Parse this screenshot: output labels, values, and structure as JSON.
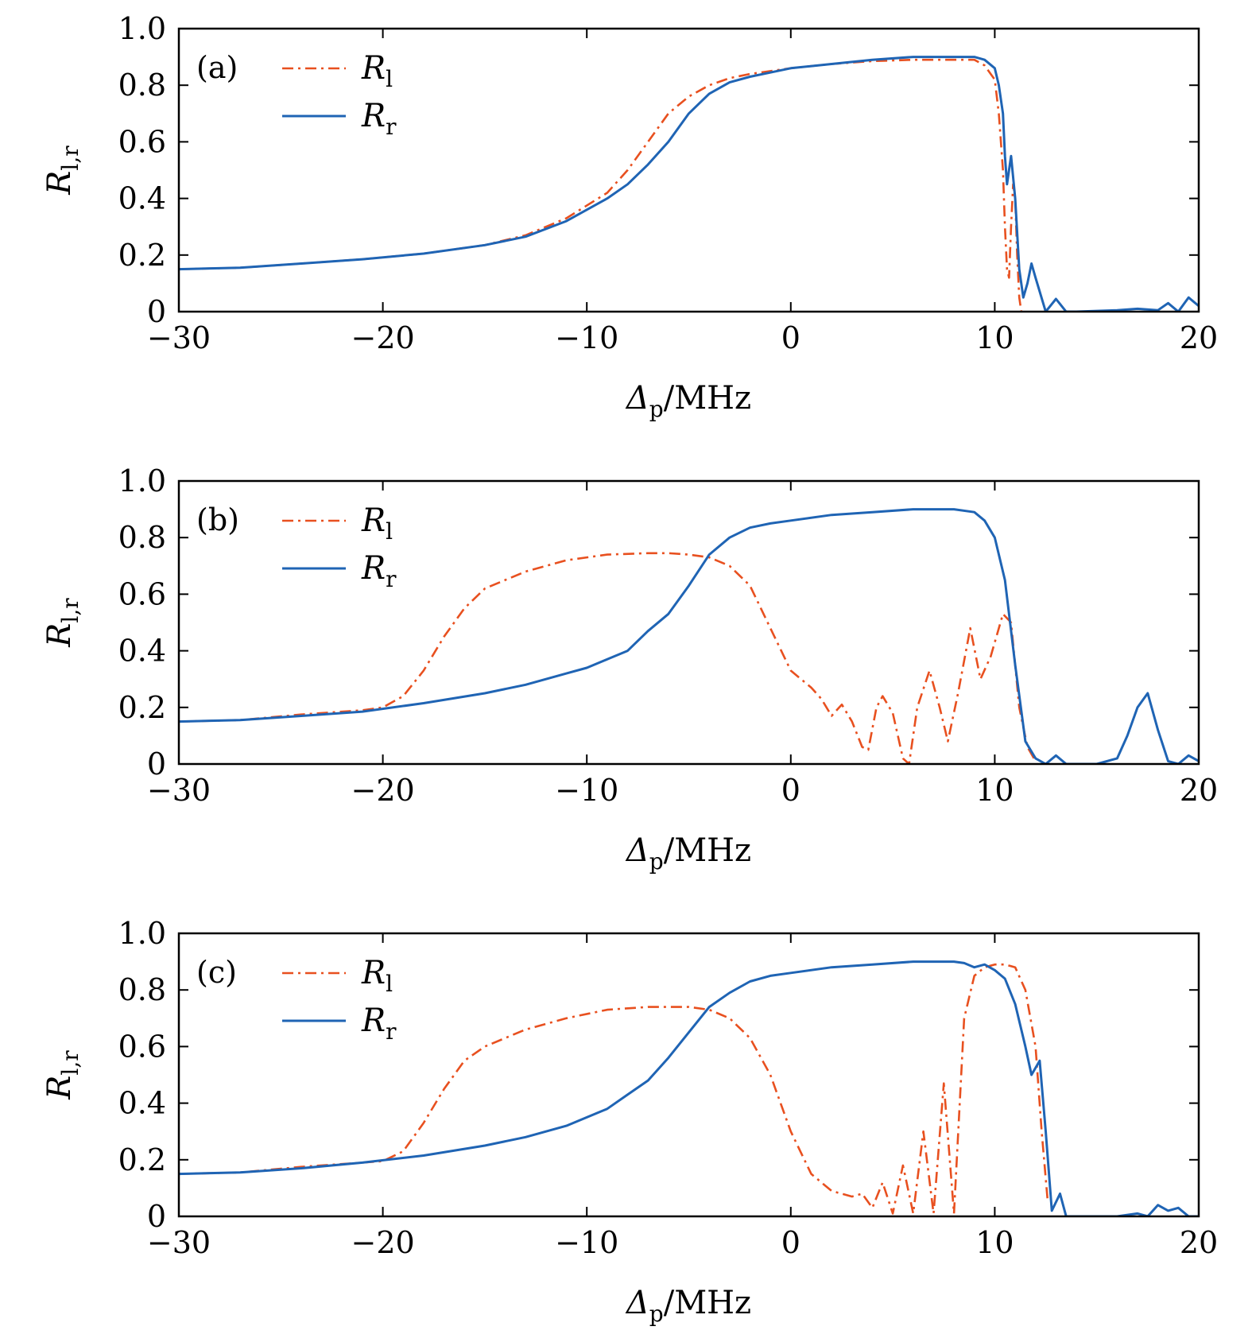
{
  "figure": {
    "shared_axes": {
      "x_label_main": "Δ",
      "x_label_sub": "p",
      "x_label_unit": "/MHz",
      "y_label_main": "R",
      "y_label_sub": "l,r",
      "x_ticks": [
        -30,
        -20,
        -10,
        0,
        10,
        20
      ],
      "x_tick_labels": [
        "−30",
        "−20",
        "−10",
        "0",
        "10",
        "20"
      ],
      "y_ticks": [
        0,
        0.2,
        0.4,
        0.6,
        0.8,
        1.0
      ],
      "y_tick_labels": [
        "0",
        "0.2",
        "0.4",
        "0.6",
        "0.8",
        "1.0"
      ],
      "xlim": [
        -30,
        20
      ],
      "ylim": [
        0,
        1.0
      ]
    },
    "legend": {
      "items": [
        {
          "main": "R",
          "sub": "l",
          "color": "#e8501f",
          "style": "dash-dot"
        },
        {
          "main": "R",
          "sub": "r",
          "color": "#1f64b4",
          "style": "solid"
        }
      ],
      "placement": "top-left"
    }
  },
  "chart_data": [
    {
      "type": "line",
      "panel": "(a)",
      "xlabel": "Δp/MHz",
      "ylabel": "Rl,r",
      "xlim": [
        -30,
        20
      ],
      "ylim": [
        0,
        1.0
      ],
      "grid": false,
      "series": [
        {
          "name": "Rl",
          "color": "#e8501f",
          "x": [
            -30,
            -27,
            -24,
            -21,
            -18,
            -15,
            -13,
            -11,
            -9,
            -8,
            -7,
            -6,
            -5,
            -4,
            -3,
            -2,
            -1,
            0,
            2,
            4,
            6,
            8,
            9,
            9.5,
            10,
            10.2,
            10.4,
            10.5,
            10.6,
            10.7,
            10.8,
            10.9,
            11,
            11.1,
            11.2,
            11.3
          ],
          "y": [
            0.15,
            0.155,
            0.17,
            0.185,
            0.205,
            0.235,
            0.27,
            0.33,
            0.42,
            0.5,
            0.6,
            0.7,
            0.76,
            0.8,
            0.825,
            0.84,
            0.85,
            0.86,
            0.875,
            0.885,
            0.89,
            0.89,
            0.89,
            0.87,
            0.82,
            0.7,
            0.5,
            0.3,
            0.15,
            0.12,
            0.3,
            0.45,
            0.4,
            0.2,
            0.05,
            0
          ]
        },
        {
          "name": "Rr",
          "color": "#1f64b4",
          "x": [
            -30,
            -27,
            -24,
            -21,
            -18,
            -15,
            -13,
            -11,
            -9,
            -8,
            -7,
            -6,
            -5,
            -4,
            -3,
            -2,
            -1,
            0,
            2,
            4,
            6,
            8,
            9,
            9.5,
            10,
            10.2,
            10.4,
            10.5,
            10.6,
            10.8,
            11,
            11.2,
            11.4,
            11.6,
            11.8,
            12,
            12.5,
            13,
            13.5,
            14,
            16,
            17,
            18,
            18.5,
            19,
            19.5,
            20
          ],
          "y": [
            0.15,
            0.155,
            0.17,
            0.185,
            0.205,
            0.235,
            0.265,
            0.32,
            0.4,
            0.45,
            0.52,
            0.6,
            0.7,
            0.77,
            0.81,
            0.83,
            0.845,
            0.86,
            0.875,
            0.89,
            0.9,
            0.9,
            0.9,
            0.89,
            0.86,
            0.8,
            0.7,
            0.55,
            0.45,
            0.55,
            0.4,
            0.15,
            0.05,
            0.1,
            0.17,
            0.12,
            0,
            0.045,
            0,
            0,
            0.005,
            0.01,
            0.005,
            0.03,
            0,
            0.05,
            0.02
          ]
        }
      ]
    },
    {
      "type": "line",
      "panel": "(b)",
      "xlabel": "Δp/MHz",
      "ylabel": "Rl,r",
      "xlim": [
        -30,
        20
      ],
      "ylim": [
        0,
        1.0
      ],
      "grid": false,
      "series": [
        {
          "name": "Rl",
          "color": "#e8501f",
          "x": [
            -30,
            -27,
            -24,
            -21,
            -20,
            -19,
            -18,
            -17,
            -16,
            -15,
            -13,
            -11,
            -9,
            -7,
            -6,
            -5,
            -4,
            -3,
            -2,
            -1,
            0,
            1,
            1.5,
            2,
            2.5,
            3,
            3.5,
            3.8,
            4.2,
            4.5,
            5,
            5.5,
            5.8,
            6.2,
            6.8,
            7.3,
            7.7,
            8.2,
            8.8,
            9.3,
            9.8,
            10.4,
            10.8,
            11.2,
            11.6,
            12
          ],
          "y": [
            0.15,
            0.155,
            0.175,
            0.19,
            0.2,
            0.24,
            0.33,
            0.45,
            0.55,
            0.62,
            0.68,
            0.72,
            0.74,
            0.745,
            0.745,
            0.74,
            0.73,
            0.7,
            0.63,
            0.48,
            0.33,
            0.27,
            0.23,
            0.17,
            0.21,
            0.15,
            0.06,
            0.05,
            0.2,
            0.24,
            0.18,
            0.02,
            0,
            0.2,
            0.33,
            0.2,
            0.08,
            0.25,
            0.48,
            0.3,
            0.38,
            0.53,
            0.5,
            0.2,
            0.06,
            0.01
          ]
        },
        {
          "name": "Rr",
          "color": "#1f64b4",
          "x": [
            -30,
            -27,
            -24,
            -21,
            -18,
            -15,
            -13,
            -11,
            -10,
            -9,
            -8,
            -7,
            -6,
            -5,
            -4,
            -3,
            -2,
            -1,
            0,
            2,
            4,
            6,
            8,
            9,
            9.5,
            10,
            10.5,
            11,
            11.5,
            12,
            12.5,
            13,
            13.5,
            14,
            15,
            16,
            16.5,
            17,
            17.5,
            18,
            18.5,
            19,
            19.5,
            20
          ],
          "y": [
            0.15,
            0.155,
            0.17,
            0.185,
            0.215,
            0.25,
            0.28,
            0.32,
            0.34,
            0.37,
            0.4,
            0.47,
            0.53,
            0.63,
            0.74,
            0.8,
            0.835,
            0.85,
            0.86,
            0.88,
            0.89,
            0.9,
            0.9,
            0.89,
            0.86,
            0.8,
            0.65,
            0.35,
            0.08,
            0.02,
            0,
            0.03,
            0,
            0,
            0,
            0.02,
            0.1,
            0.2,
            0.25,
            0.12,
            0.01,
            0,
            0.03,
            0.01
          ]
        }
      ]
    },
    {
      "type": "line",
      "panel": "(c)",
      "xlabel": "Δp/MHz",
      "ylabel": "Rl,r",
      "xlim": [
        -30,
        20
      ],
      "ylim": [
        0,
        1.0
      ],
      "grid": false,
      "series": [
        {
          "name": "Rl",
          "color": "#e8501f",
          "x": [
            -30,
            -27,
            -24,
            -21,
            -20,
            -19,
            -18,
            -17,
            -16,
            -15,
            -13,
            -11,
            -9,
            -7,
            -6,
            -5,
            -4,
            -3,
            -2,
            -1,
            0,
            1,
            2,
            3,
            3.5,
            4,
            4.5,
            5,
            5.5,
            6,
            6.5,
            7,
            7.5,
            8,
            8.5,
            9,
            9.5,
            10,
            10.5,
            11,
            11.5,
            12,
            12.3,
            12.6
          ],
          "y": [
            0.15,
            0.155,
            0.175,
            0.19,
            0.195,
            0.23,
            0.33,
            0.45,
            0.55,
            0.6,
            0.66,
            0.7,
            0.73,
            0.74,
            0.74,
            0.74,
            0.73,
            0.7,
            0.63,
            0.5,
            0.3,
            0.15,
            0.09,
            0.07,
            0.08,
            0.03,
            0.12,
            0.01,
            0.18,
            0.01,
            0.3,
            0.01,
            0.47,
            0.01,
            0.7,
            0.85,
            0.88,
            0.89,
            0.89,
            0.88,
            0.8,
            0.6,
            0.3,
            0.05
          ]
        },
        {
          "name": "Rr",
          "color": "#1f64b4",
          "x": [
            -30,
            -27,
            -24,
            -21,
            -18,
            -15,
            -13,
            -11,
            -9,
            -8,
            -7,
            -6,
            -5,
            -4,
            -3,
            -2,
            -1,
            0,
            2,
            4,
            6,
            8,
            8.5,
            9,
            9.5,
            10,
            10.5,
            11,
            11.5,
            11.8,
            12.2,
            12.5,
            12.8,
            13.2,
            13.5,
            14,
            16,
            17,
            17.5,
            18,
            18.5,
            19,
            19.5,
            20
          ],
          "y": [
            0.15,
            0.155,
            0.17,
            0.19,
            0.215,
            0.25,
            0.28,
            0.32,
            0.38,
            0.43,
            0.48,
            0.56,
            0.65,
            0.74,
            0.79,
            0.83,
            0.85,
            0.86,
            0.88,
            0.89,
            0.9,
            0.9,
            0.895,
            0.88,
            0.89,
            0.87,
            0.84,
            0.75,
            0.6,
            0.5,
            0.55,
            0.3,
            0.02,
            0.08,
            0,
            0,
            0,
            0.01,
            0,
            0.04,
            0.02,
            0.03,
            0,
            0
          ]
        }
      ]
    }
  ]
}
